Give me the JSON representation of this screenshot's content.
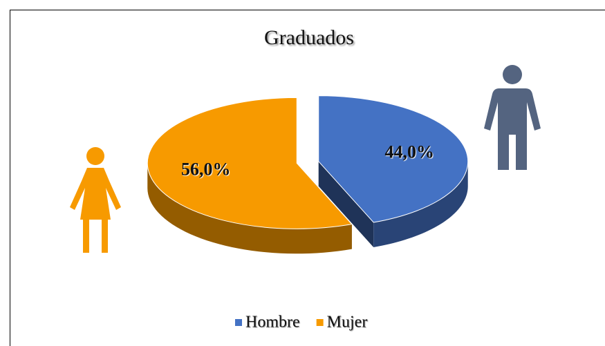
{
  "chart_data": {
    "type": "pie",
    "title": "Graduados",
    "categories": [
      "Hombre",
      "Mujer"
    ],
    "values": [
      44,
      56
    ],
    "value_labels": [
      "44,0%",
      "56,0%"
    ],
    "colors": [
      "#4472c4",
      "#f79a00"
    ],
    "legend": "bottom"
  }
}
